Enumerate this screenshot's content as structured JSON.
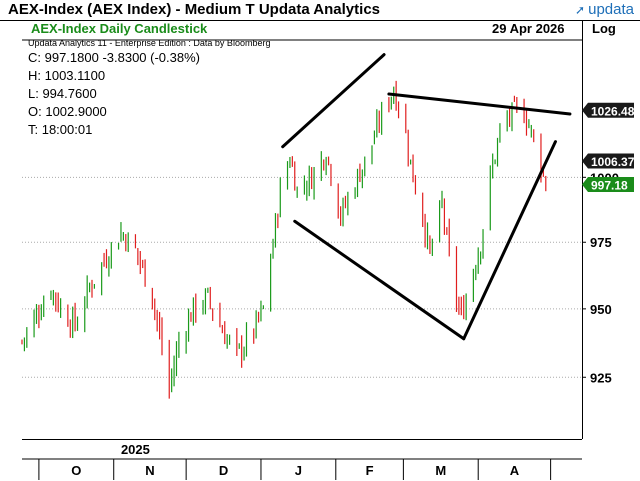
{
  "window": {
    "title": "AEX-Index (AEX Index) - Medium T  Updata Analytics",
    "logo_text": "updata"
  },
  "chart_header": {
    "chart_title": "AEX-Index Daily Candlestick",
    "date": "29 Apr 2026",
    "scale_button": "Log",
    "subtitle": "Updata Analytics 11 - Enterprise Edition : Data by Bloomberg"
  },
  "info_panel": {
    "close": "C: 997.1800  -3.8300 (-0.38%)",
    "high": "H: 1003.1100",
    "low": "L: 994.7600",
    "open": "O: 1002.9000",
    "time": "T: 18:00:01"
  },
  "price_tags": [
    {
      "label": "1026.48",
      "value": 1026.48,
      "style": "dark"
    },
    {
      "label": "1006.37",
      "value": 1006.37,
      "style": "dark"
    },
    {
      "label": "997.18",
      "value": 997.18,
      "style": "green"
    }
  ],
  "colors": {
    "up": "#1a9a1a",
    "down": "#e01e1e",
    "tag_dark": "#1a1a1a",
    "tag_green": "#1a8c1a",
    "grid": "#aaaaaa"
  },
  "chart_data": {
    "type": "candlestick",
    "title": "AEX-Index Daily Candlestick",
    "y_scale": "log",
    "ylim": [
      903,
      1055
    ],
    "y_ticks": [
      925,
      950,
      975,
      1000
    ],
    "y_tick_labels": [
      "925",
      "950",
      "975",
      "1000"
    ],
    "year_label": "2025",
    "x_months": [
      "O",
      "N",
      "D",
      "J",
      "F",
      "M",
      "A"
    ],
    "grid": "horizontal dotted",
    "price_path": [
      {
        "date": "2025-09-24",
        "close": 938
      },
      {
        "date": "2025-09-30",
        "close": 948
      },
      {
        "date": "2025-10-06",
        "close": 958
      },
      {
        "date": "2025-10-10",
        "close": 950
      },
      {
        "date": "2025-10-16",
        "close": 944
      },
      {
        "date": "2025-10-22",
        "close": 958
      },
      {
        "date": "2025-10-28",
        "close": 968
      },
      {
        "date": "2025-11-04",
        "close": 979
      },
      {
        "date": "2025-11-10",
        "close": 972
      },
      {
        "date": "2025-11-17",
        "close": 955
      },
      {
        "date": "2025-11-21",
        "close": 935
      },
      {
        "date": "2025-11-24",
        "close": 921
      },
      {
        "date": "2025-11-28",
        "close": 938
      },
      {
        "date": "2025-12-04",
        "close": 950
      },
      {
        "date": "2025-12-10",
        "close": 954
      },
      {
        "date": "2025-12-16",
        "close": 942
      },
      {
        "date": "2025-12-22",
        "close": 933
      },
      {
        "date": "2025-12-29",
        "close": 942
      },
      {
        "date": "2026-01-02",
        "close": 950
      },
      {
        "date": "2026-01-06",
        "close": 975
      },
      {
        "date": "2026-01-09",
        "close": 995
      },
      {
        "date": "2026-01-13",
        "close": 1008
      },
      {
        "date": "2026-01-16",
        "close": 995
      },
      {
        "date": "2026-01-22",
        "close": 1000
      },
      {
        "date": "2026-01-28",
        "close": 1010
      },
      {
        "date": "2026-02-03",
        "close": 985
      },
      {
        "date": "2026-02-09",
        "close": 998
      },
      {
        "date": "2026-02-15",
        "close": 1010
      },
      {
        "date": "2026-02-20",
        "close": 1025
      },
      {
        "date": "2026-02-25",
        "close": 1035
      },
      {
        "date": "2026-03-01",
        "close": 1022
      },
      {
        "date": "2026-03-05",
        "close": 1000
      },
      {
        "date": "2026-03-09",
        "close": 985
      },
      {
        "date": "2026-03-12",
        "close": 970
      },
      {
        "date": "2026-03-17",
        "close": 990
      },
      {
        "date": "2026-03-21",
        "close": 960
      },
      {
        "date": "2026-03-25",
        "close": 947
      },
      {
        "date": "2026-03-29",
        "close": 962
      },
      {
        "date": "2026-04-02",
        "close": 975
      },
      {
        "date": "2026-04-06",
        "close": 1000
      },
      {
        "date": "2026-04-10",
        "close": 1018
      },
      {
        "date": "2026-04-15",
        "close": 1025
      },
      {
        "date": "2026-04-19",
        "close": 1028
      },
      {
        "date": "2026-04-23",
        "close": 1018
      },
      {
        "date": "2026-04-27",
        "close": 1005
      },
      {
        "date": "2026-04-29",
        "close": 997.18
      }
    ],
    "trendlines": [
      {
        "name": "upper-rising",
        "from": {
          "date": "2026-01-10",
          "price": 1012
        },
        "to": {
          "date": "2026-02-21",
          "price": 1049
        }
      },
      {
        "name": "upper-falling",
        "from": {
          "date": "2026-02-23",
          "price": 1033
        },
        "to": {
          "date": "2026-05-09",
          "price": 1025
        }
      },
      {
        "name": "lower-falling",
        "from": {
          "date": "2026-01-15",
          "price": 983
        },
        "to": {
          "date": "2026-03-26",
          "price": 939
        }
      },
      {
        "name": "lower-rising",
        "from": {
          "date": "2026-03-26",
          "price": 939
        },
        "to": {
          "date": "2026-05-03",
          "price": 1014
        }
      }
    ]
  }
}
